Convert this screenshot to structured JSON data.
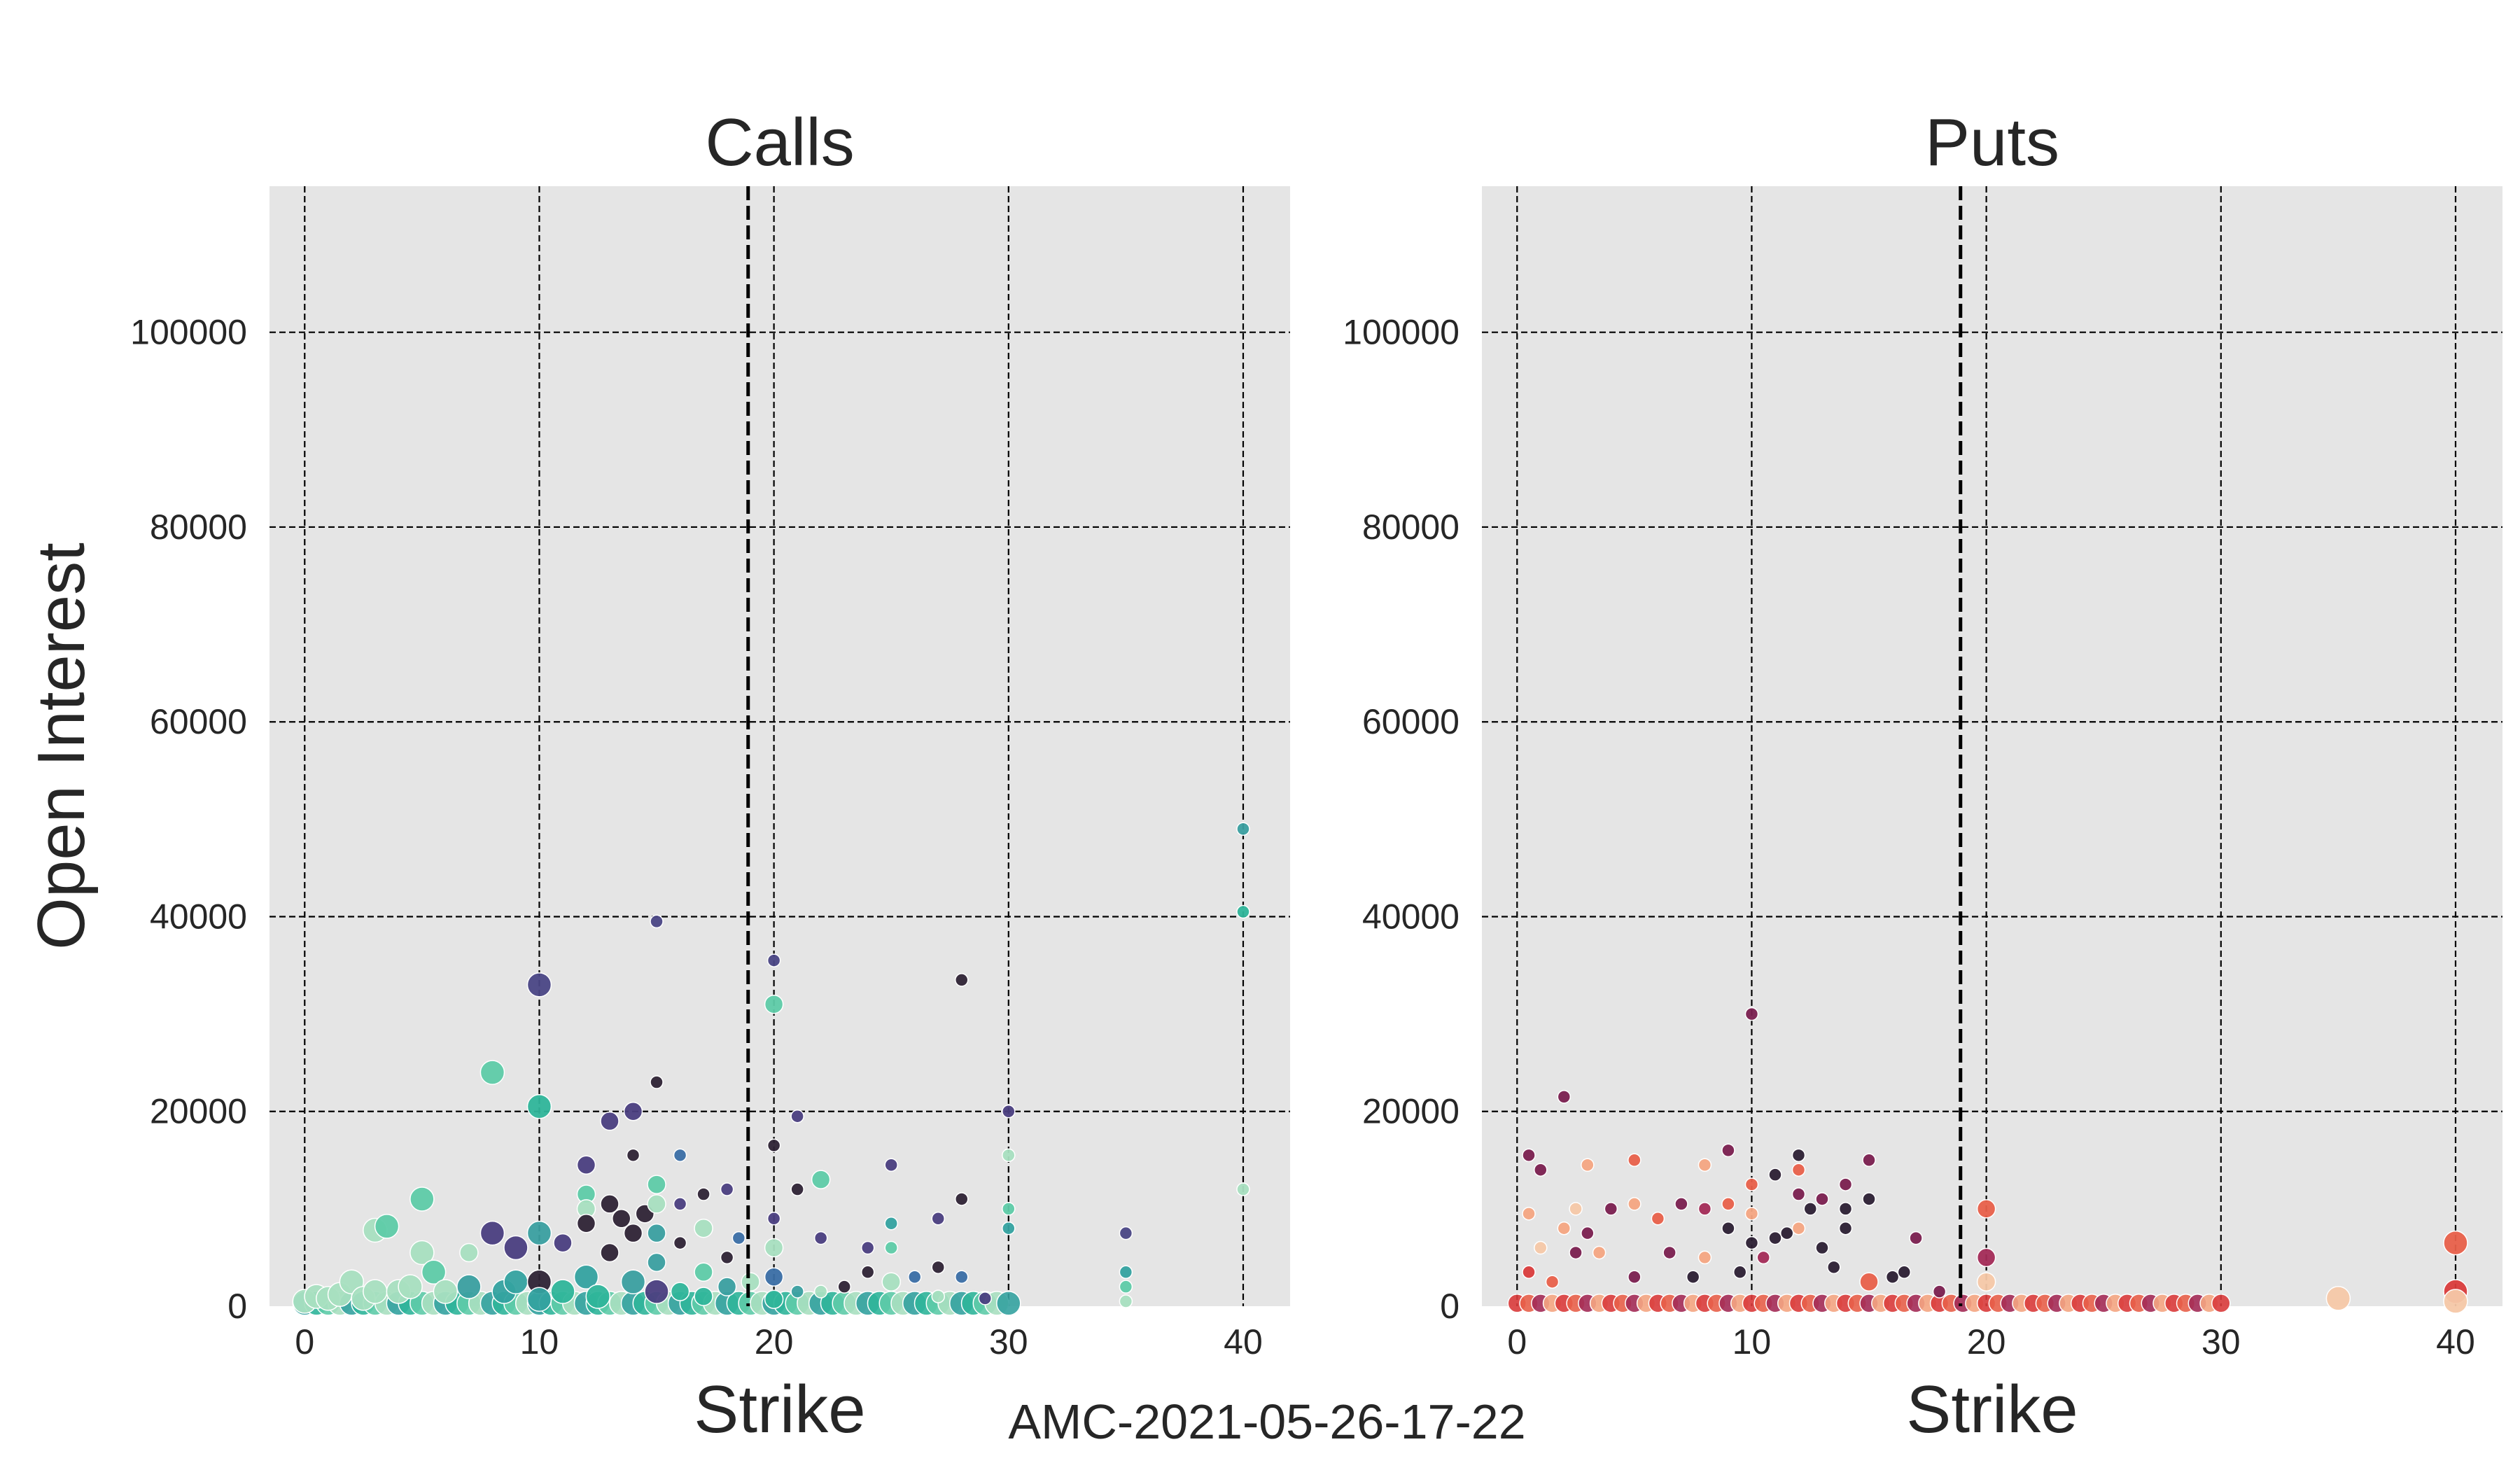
{
  "figure_label": "AMC-2021-05-26-17-22",
  "chart_data": [
    {
      "type": "scatter",
      "title": "Calls",
      "xlabel": "Strike",
      "ylabel": "Open Interest",
      "xlim": [
        -1.5,
        42
      ],
      "ylim": [
        0,
        115000
      ],
      "xticks": [
        0,
        10,
        20,
        30,
        40
      ],
      "yticks": [
        0,
        20000,
        40000,
        60000,
        80000,
        100000
      ],
      "xtick_labels": [
        "0",
        "10",
        "20",
        "30",
        "40"
      ],
      "ytick_labels": [
        "0",
        "20000",
        "40000",
        "60000",
        "80000",
        "100000"
      ],
      "grid": true,
      "reference_line_x": 18.9,
      "points": [
        {
          "x": 0,
          "y": 500,
          "s": 3,
          "c": "#a8dfc0"
        },
        {
          "x": 0.5,
          "y": 1000,
          "s": 3,
          "c": "#a8dfc0"
        },
        {
          "x": 1,
          "y": 800,
          "s": 3,
          "c": "#a8dfc0"
        },
        {
          "x": 1.5,
          "y": 1200,
          "s": 3,
          "c": "#a8dfc0"
        },
        {
          "x": 2,
          "y": 2500,
          "s": 3,
          "c": "#a8dfc0"
        },
        {
          "x": 2.5,
          "y": 800,
          "s": 3,
          "c": "#a8dfc0"
        },
        {
          "x": 3,
          "y": 1500,
          "s": 3,
          "c": "#a8dfc0"
        },
        {
          "x": 3,
          "y": 7800,
          "s": 3,
          "c": "#a8dfc0"
        },
        {
          "x": 3.5,
          "y": 8200,
          "s": 3,
          "c": "#5ecba8"
        },
        {
          "x": 4,
          "y": 1500,
          "s": 3,
          "c": "#a8dfc0"
        },
        {
          "x": 4.5,
          "y": 2000,
          "s": 3,
          "c": "#a8dfc0"
        },
        {
          "x": 5,
          "y": 11000,
          "s": 3,
          "c": "#5ecba8"
        },
        {
          "x": 5,
          "y": 5500,
          "s": 3,
          "c": "#a8dfc0"
        },
        {
          "x": 5.5,
          "y": 3500,
          "s": 3,
          "c": "#5ecba8"
        },
        {
          "x": 6,
          "y": 1500,
          "s": 3,
          "c": "#a8dfc0"
        },
        {
          "x": 7,
          "y": 5500,
          "s": 2,
          "c": "#a8dfc0"
        },
        {
          "x": 7,
          "y": 2000,
          "s": 3,
          "c": "#3a9fa0"
        },
        {
          "x": 8,
          "y": 7500,
          "s": 3,
          "c": "#4a3e80"
        },
        {
          "x": 8,
          "y": 24000,
          "s": 3,
          "c": "#5ecba8"
        },
        {
          "x": 8.5,
          "y": 1500,
          "s": 3,
          "c": "#34a2a0"
        },
        {
          "x": 9,
          "y": 6000,
          "s": 3,
          "c": "#4a3e80"
        },
        {
          "x": 9,
          "y": 2500,
          "s": 3,
          "c": "#34a2a0"
        },
        {
          "x": 10,
          "y": 33000,
          "s": 3,
          "c": "#4a4685"
        },
        {
          "x": 10,
          "y": 20500,
          "s": 3,
          "c": "#2fb59a"
        },
        {
          "x": 10,
          "y": 7500,
          "s": 3,
          "c": "#3a9fa0"
        },
        {
          "x": 10,
          "y": 2500,
          "s": 3,
          "c": "#2e2335"
        },
        {
          "x": 10,
          "y": 700,
          "s": 3,
          "c": "#34a2a0"
        },
        {
          "x": 11,
          "y": 1500,
          "s": 3,
          "c": "#2fb59a"
        },
        {
          "x": 11,
          "y": 6500,
          "s": 2,
          "c": "#4a3e80"
        },
        {
          "x": 12,
          "y": 14500,
          "s": 2,
          "c": "#4a3e80"
        },
        {
          "x": 12,
          "y": 11500,
          "s": 2,
          "c": "#5ecba8"
        },
        {
          "x": 12,
          "y": 10000,
          "s": 2,
          "c": "#a8dfc0"
        },
        {
          "x": 12,
          "y": 8500,
          "s": 2,
          "c": "#2e2335"
        },
        {
          "x": 12,
          "y": 3000,
          "s": 3,
          "c": "#34a2a0"
        },
        {
          "x": 12.5,
          "y": 1000,
          "s": 3,
          "c": "#2fb59a"
        },
        {
          "x": 13,
          "y": 19000,
          "s": 2,
          "c": "#4a3e80"
        },
        {
          "x": 13,
          "y": 10500,
          "s": 2,
          "c": "#2e2335"
        },
        {
          "x": 13,
          "y": 5500,
          "s": 2,
          "c": "#2e2335"
        },
        {
          "x": 13.5,
          "y": 9000,
          "s": 2,
          "c": "#2e2335"
        },
        {
          "x": 14,
          "y": 20000,
          "s": 2,
          "c": "#4a3e80"
        },
        {
          "x": 14,
          "y": 15500,
          "s": 1,
          "c": "#2e2335"
        },
        {
          "x": 14,
          "y": 7500,
          "s": 2,
          "c": "#2e2335"
        },
        {
          "x": 14,
          "y": 2500,
          "s": 3,
          "c": "#3a9fa0"
        },
        {
          "x": 14.5,
          "y": 9500,
          "s": 2,
          "c": "#2e2335"
        },
        {
          "x": 15,
          "y": 39500,
          "s": 1,
          "c": "#4a4685"
        },
        {
          "x": 15,
          "y": 23000,
          "s": 1,
          "c": "#2e2335"
        },
        {
          "x": 15,
          "y": 12500,
          "s": 2,
          "c": "#5ecba8"
        },
        {
          "x": 15,
          "y": 10500,
          "s": 2,
          "c": "#a8dfc0"
        },
        {
          "x": 15,
          "y": 7500,
          "s": 2,
          "c": "#3a9fa0"
        },
        {
          "x": 15,
          "y": 4500,
          "s": 2,
          "c": "#3a9fa0"
        },
        {
          "x": 15,
          "y": 1500,
          "s": 3,
          "c": "#4a3e80"
        },
        {
          "x": 16,
          "y": 15500,
          "s": 1,
          "c": "#3a6ea5"
        },
        {
          "x": 16,
          "y": 10500,
          "s": 1,
          "c": "#4a3e80"
        },
        {
          "x": 16,
          "y": 6500,
          "s": 1,
          "c": "#2e2335"
        },
        {
          "x": 16,
          "y": 1500,
          "s": 2,
          "c": "#2fb59a"
        },
        {
          "x": 17,
          "y": 11500,
          "s": 1,
          "c": "#2e2335"
        },
        {
          "x": 17,
          "y": 8000,
          "s": 2,
          "c": "#a8dfc0"
        },
        {
          "x": 17,
          "y": 3500,
          "s": 2,
          "c": "#5ecba8"
        },
        {
          "x": 17,
          "y": 1000,
          "s": 2,
          "c": "#2fb59a"
        },
        {
          "x": 18,
          "y": 12000,
          "s": 1,
          "c": "#4a3e80"
        },
        {
          "x": 18,
          "y": 5000,
          "s": 1,
          "c": "#2e2335"
        },
        {
          "x": 18,
          "y": 2000,
          "s": 2,
          "c": "#3a9fa0"
        },
        {
          "x": 18.5,
          "y": 7000,
          "s": 1,
          "c": "#3a6ea5"
        },
        {
          "x": 19,
          "y": 2500,
          "s": 2,
          "c": "#a8dfc0"
        },
        {
          "x": 20,
          "y": 35500,
          "s": 1,
          "c": "#4a4685"
        },
        {
          "x": 20,
          "y": 31000,
          "s": 2,
          "c": "#5ecba8"
        },
        {
          "x": 20,
          "y": 16500,
          "s": 1,
          "c": "#2e2335"
        },
        {
          "x": 20,
          "y": 9000,
          "s": 1,
          "c": "#4a3e80"
        },
        {
          "x": 20,
          "y": 6000,
          "s": 2,
          "c": "#a8dfc0"
        },
        {
          "x": 20,
          "y": 3000,
          "s": 2,
          "c": "#3a6ea5"
        },
        {
          "x": 20,
          "y": 700,
          "s": 2,
          "c": "#2fb59a"
        },
        {
          "x": 21,
          "y": 19500,
          "s": 1,
          "c": "#4a3e80"
        },
        {
          "x": 21,
          "y": 12000,
          "s": 1,
          "c": "#2e2335"
        },
        {
          "x": 21,
          "y": 1500,
          "s": 1,
          "c": "#3a9fa0"
        },
        {
          "x": 22,
          "y": 13000,
          "s": 2,
          "c": "#5ecba8"
        },
        {
          "x": 22,
          "y": 7000,
          "s": 1,
          "c": "#4a3e80"
        },
        {
          "x": 22,
          "y": 1500,
          "s": 1,
          "c": "#a8dfc0"
        },
        {
          "x": 23,
          "y": 2000,
          "s": 1,
          "c": "#2e2335"
        },
        {
          "x": 24,
          "y": 6000,
          "s": 1,
          "c": "#4a3e80"
        },
        {
          "x": 24,
          "y": 3500,
          "s": 1,
          "c": "#2e2335"
        },
        {
          "x": 25,
          "y": 14500,
          "s": 1,
          "c": "#4a3e80"
        },
        {
          "x": 25,
          "y": 8500,
          "s": 1,
          "c": "#34a2a0"
        },
        {
          "x": 25,
          "y": 6000,
          "s": 1,
          "c": "#5ecba8"
        },
        {
          "x": 25,
          "y": 2500,
          "s": 2,
          "c": "#a8dfc0"
        },
        {
          "x": 26,
          "y": 3000,
          "s": 1,
          "c": "#3a6ea5"
        },
        {
          "x": 27,
          "y": 9000,
          "s": 1,
          "c": "#4a3e80"
        },
        {
          "x": 27,
          "y": 4000,
          "s": 1,
          "c": "#2e2335"
        },
        {
          "x": 27,
          "y": 1000,
          "s": 1,
          "c": "#a8dfc0"
        },
        {
          "x": 28,
          "y": 33500,
          "s": 1,
          "c": "#2e2335"
        },
        {
          "x": 28,
          "y": 11000,
          "s": 1,
          "c": "#2e2335"
        },
        {
          "x": 28,
          "y": 3000,
          "s": 1,
          "c": "#3a6ea5"
        },
        {
          "x": 29,
          "y": 800,
          "s": 1,
          "c": "#4a3e80"
        },
        {
          "x": 30,
          "y": 20000,
          "s": 1,
          "c": "#4a3e80"
        },
        {
          "x": 30,
          "y": 15500,
          "s": 1,
          "c": "#a8dfc0"
        },
        {
          "x": 30,
          "y": 10000,
          "s": 1,
          "c": "#5ecba8"
        },
        {
          "x": 30,
          "y": 8000,
          "s": 1,
          "c": "#34a2a0"
        },
        {
          "x": 35,
          "y": 7500,
          "s": 1,
          "c": "#4a4685"
        },
        {
          "x": 35,
          "y": 3500,
          "s": 1,
          "c": "#34a2a0"
        },
        {
          "x": 35,
          "y": 2000,
          "s": 1,
          "c": "#5ecba8"
        },
        {
          "x": 35,
          "y": 500,
          "s": 1,
          "c": "#a8dfc0"
        },
        {
          "x": 40,
          "y": 49000,
          "s": 1,
          "c": "#3a9fa0"
        },
        {
          "x": 40,
          "y": 40500,
          "s": 1,
          "c": "#2fb59a"
        },
        {
          "x": 40,
          "y": 12000,
          "s": 1,
          "c": "#a8dfc0"
        }
      ],
      "baseline_points": {
        "x_start": 0,
        "x_end": 30,
        "step": 0.5,
        "y": 300,
        "s": 3,
        "colors": [
          "#34a2a0",
          "#2fb59a",
          "#5ecba8",
          "#a8dfc0"
        ]
      }
    },
    {
      "type": "scatter",
      "title": "Puts",
      "xlabel": "Strike",
      "ylabel": "",
      "xlim": [
        -1.5,
        42
      ],
      "ylim": [
        0,
        115000
      ],
      "xticks": [
        0,
        10,
        20,
        30,
        40
      ],
      "yticks": [
        0,
        20000,
        40000,
        60000,
        80000,
        100000
      ],
      "xtick_labels": [
        "0",
        "10",
        "20",
        "30",
        "40"
      ],
      "ytick_labels": [
        "0",
        "20000",
        "40000",
        "60000",
        "80000",
        "100000"
      ],
      "grid": true,
      "reference_line_x": 18.9,
      "points": [
        {
          "x": 0.5,
          "y": 15500,
          "s": 1,
          "c": "#7a1f4f"
        },
        {
          "x": 0.5,
          "y": 9500,
          "s": 1,
          "c": "#f4a582"
        },
        {
          "x": 0.5,
          "y": 3500,
          "s": 1,
          "c": "#d93b3b"
        },
        {
          "x": 1,
          "y": 14000,
          "s": 1,
          "c": "#7a1f4f"
        },
        {
          "x": 1,
          "y": 6000,
          "s": 1,
          "c": "#f6c8a8"
        },
        {
          "x": 1.5,
          "y": 2500,
          "s": 1,
          "c": "#e8604a"
        },
        {
          "x": 2,
          "y": 21500,
          "s": 1,
          "c": "#7a1f4f"
        },
        {
          "x": 2,
          "y": 8000,
          "s": 1,
          "c": "#f4a582"
        },
        {
          "x": 2.5,
          "y": 5500,
          "s": 1,
          "c": "#7a1f4f"
        },
        {
          "x": 2.5,
          "y": 10000,
          "s": 1,
          "c": "#f6c8a8"
        },
        {
          "x": 3,
          "y": 14500,
          "s": 1,
          "c": "#f4a582"
        },
        {
          "x": 3,
          "y": 7500,
          "s": 1,
          "c": "#7a1f4f"
        },
        {
          "x": 3.5,
          "y": 5500,
          "s": 1,
          "c": "#f4a582"
        },
        {
          "x": 4,
          "y": 10000,
          "s": 1,
          "c": "#7a1f4f"
        },
        {
          "x": 5,
          "y": 15000,
          "s": 1,
          "c": "#e8604a"
        },
        {
          "x": 5,
          "y": 10500,
          "s": 1,
          "c": "#f4a582"
        },
        {
          "x": 5,
          "y": 3000,
          "s": 1,
          "c": "#7a1f4f"
        },
        {
          "x": 6,
          "y": 9000,
          "s": 1,
          "c": "#e8604a"
        },
        {
          "x": 6.5,
          "y": 5500,
          "s": 1,
          "c": "#7a1f4f"
        },
        {
          "x": 7,
          "y": 10500,
          "s": 1,
          "c": "#7a1f4f"
        },
        {
          "x": 7.5,
          "y": 3000,
          "s": 1,
          "c": "#2b1f33"
        },
        {
          "x": 8,
          "y": 14500,
          "s": 1,
          "c": "#f4a582"
        },
        {
          "x": 8,
          "y": 10000,
          "s": 1,
          "c": "#a32b57"
        },
        {
          "x": 8,
          "y": 5000,
          "s": 1,
          "c": "#f4a582"
        },
        {
          "x": 9,
          "y": 16000,
          "s": 1,
          "c": "#7a1f4f"
        },
        {
          "x": 9,
          "y": 10500,
          "s": 1,
          "c": "#e8604a"
        },
        {
          "x": 9,
          "y": 8000,
          "s": 1,
          "c": "#2b1f33"
        },
        {
          "x": 9.5,
          "y": 3500,
          "s": 1,
          "c": "#2b1f33"
        },
        {
          "x": 10,
          "y": 30000,
          "s": 1,
          "c": "#7a1f4f"
        },
        {
          "x": 10,
          "y": 12500,
          "s": 1,
          "c": "#e8604a"
        },
        {
          "x": 10,
          "y": 9500,
          "s": 1,
          "c": "#f4a582"
        },
        {
          "x": 10,
          "y": 6500,
          "s": 1,
          "c": "#2b1f33"
        },
        {
          "x": 10.5,
          "y": 5000,
          "s": 1,
          "c": "#a32b57"
        },
        {
          "x": 11,
          "y": 13500,
          "s": 1,
          "c": "#2b1f33"
        },
        {
          "x": 11,
          "y": 7000,
          "s": 1,
          "c": "#2b1f33"
        },
        {
          "x": 11.5,
          "y": 7500,
          "s": 1,
          "c": "#2b1f33"
        },
        {
          "x": 12,
          "y": 15500,
          "s": 1,
          "c": "#2b1f33"
        },
        {
          "x": 12,
          "y": 14000,
          "s": 1,
          "c": "#e8604a"
        },
        {
          "x": 12,
          "y": 11500,
          "s": 1,
          "c": "#7a1f4f"
        },
        {
          "x": 12,
          "y": 8000,
          "s": 1,
          "c": "#f4a582"
        },
        {
          "x": 12.5,
          "y": 10000,
          "s": 1,
          "c": "#2b1f33"
        },
        {
          "x": 13,
          "y": 11000,
          "s": 1,
          "c": "#7a1f4f"
        },
        {
          "x": 13,
          "y": 6000,
          "s": 1,
          "c": "#2b1f33"
        },
        {
          "x": 13.5,
          "y": 4000,
          "s": 1,
          "c": "#2b1f33"
        },
        {
          "x": 14,
          "y": 12500,
          "s": 1,
          "c": "#7a1f4f"
        },
        {
          "x": 14,
          "y": 10000,
          "s": 1,
          "c": "#2b1f33"
        },
        {
          "x": 14,
          "y": 8000,
          "s": 1,
          "c": "#2b1f33"
        },
        {
          "x": 15,
          "y": 15000,
          "s": 1,
          "c": "#7a1f4f"
        },
        {
          "x": 15,
          "y": 11000,
          "s": 1,
          "c": "#2b1f33"
        },
        {
          "x": 15,
          "y": 2500,
          "s": 2,
          "c": "#e8604a"
        },
        {
          "x": 16,
          "y": 3000,
          "s": 1,
          "c": "#2b1f33"
        },
        {
          "x": 16.5,
          "y": 3500,
          "s": 1,
          "c": "#2b1f33"
        },
        {
          "x": 17,
          "y": 7000,
          "s": 1,
          "c": "#7a1f4f"
        },
        {
          "x": 18,
          "y": 1500,
          "s": 1,
          "c": "#7a1f4f"
        },
        {
          "x": 20,
          "y": 10000,
          "s": 2,
          "c": "#e8604a"
        },
        {
          "x": 20,
          "y": 5000,
          "s": 2,
          "c": "#a32b57"
        },
        {
          "x": 20,
          "y": 2500,
          "s": 2,
          "c": "#f6c8a8"
        },
        {
          "x": 35,
          "y": 800,
          "s": 3,
          "c": "#f6c8a8"
        },
        {
          "x": 40,
          "y": 6500,
          "s": 3,
          "c": "#e8604a"
        },
        {
          "x": 40,
          "y": 1500,
          "s": 3,
          "c": "#d93b3b"
        },
        {
          "x": 40,
          "y": 500,
          "s": 3,
          "c": "#f6c8a8"
        }
      ],
      "baseline_points": {
        "x_start": 0,
        "x_end": 30,
        "step": 0.5,
        "y": 300,
        "s": 2,
        "colors": [
          "#d93b3b",
          "#e8604a",
          "#a32b57",
          "#f4a582"
        ]
      }
    }
  ]
}
